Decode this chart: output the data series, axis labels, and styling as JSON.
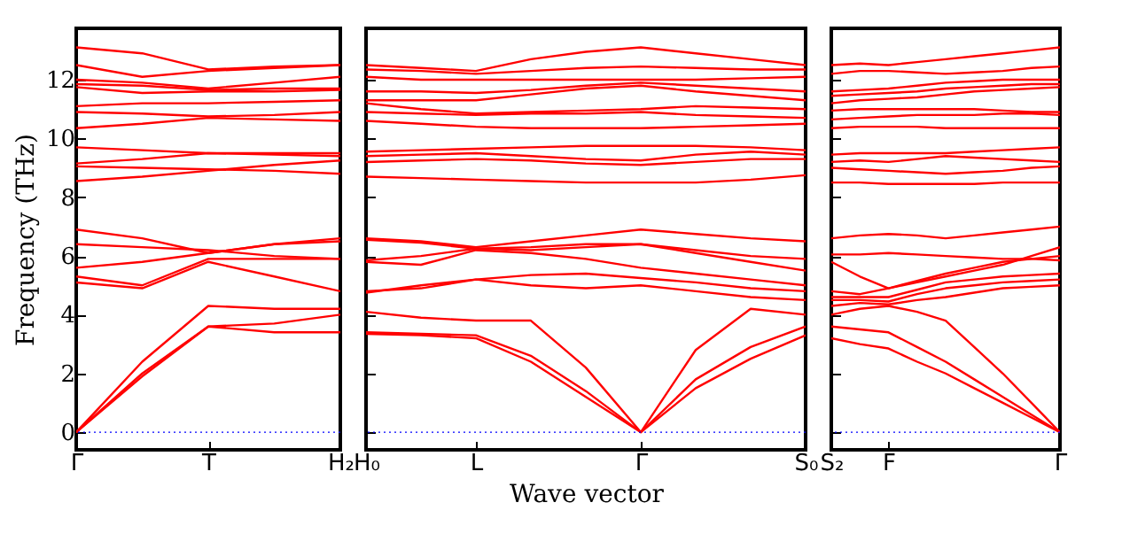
{
  "chart_data": [
    {
      "type": "line",
      "ylabel": "Frequency (THz)",
      "ylim": [
        -0.6,
        13.75
      ],
      "yticks": [
        0,
        2,
        4,
        6,
        8,
        10,
        12
      ],
      "categories": [
        "Γ",
        null,
        "T",
        null,
        "H₂"
      ],
      "ref_lines": [
        {
          "axis": "y",
          "value": 0,
          "color": "#0000ff",
          "line_style": "dotted"
        }
      ],
      "series": [
        {
          "color": "#ff0000",
          "values": [
            0,
            1.9,
            3.6,
            3.4,
            3.4
          ]
        },
        {
          "color": "#ff0000",
          "values": [
            0,
            2.0,
            3.6,
            3.7,
            4.0
          ]
        },
        {
          "color": "#ff0000",
          "values": [
            0,
            2.4,
            4.3,
            4.2,
            4.2
          ]
        },
        {
          "color": "#ff0000",
          "values": [
            5.1,
            4.9,
            5.8,
            5.3,
            4.8
          ]
        },
        {
          "color": "#ff0000",
          "values": [
            5.3,
            5.0,
            5.9,
            5.9,
            5.9
          ]
        },
        {
          "color": "#ff0000",
          "values": [
            5.6,
            5.8,
            6.1,
            6.4,
            6.5
          ]
        },
        {
          "color": "#ff0000",
          "values": [
            6.4,
            6.3,
            6.2,
            6.0,
            5.9
          ]
        },
        {
          "color": "#ff0000",
          "values": [
            6.9,
            6.6,
            6.1,
            6.4,
            6.6
          ]
        },
        {
          "color": "#ff0000",
          "values": [
            8.55,
            8.7,
            8.9,
            9.1,
            9.25
          ]
        },
        {
          "color": "#ff0000",
          "values": [
            9.05,
            9.0,
            8.95,
            8.9,
            8.8
          ]
        },
        {
          "color": "#ff0000",
          "values": [
            9.15,
            9.3,
            9.5,
            9.45,
            9.4
          ]
        },
        {
          "color": "#ff0000",
          "values": [
            9.7,
            9.6,
            9.5,
            9.5,
            9.5
          ]
        },
        {
          "color": "#ff0000",
          "values": [
            10.35,
            10.5,
            10.7,
            10.65,
            10.6
          ]
        },
        {
          "color": "#ff0000",
          "values": [
            10.9,
            10.85,
            10.75,
            10.8,
            10.9
          ]
        },
        {
          "color": "#ff0000",
          "values": [
            11.1,
            11.2,
            11.2,
            11.25,
            11.3
          ]
        },
        {
          "color": "#ff0000",
          "values": [
            11.75,
            11.55,
            11.6,
            11.6,
            11.65
          ]
        },
        {
          "color": "#ff0000",
          "values": [
            11.85,
            11.8,
            11.65,
            11.7,
            11.7
          ]
        },
        {
          "color": "#ff0000",
          "values": [
            12.0,
            11.9,
            11.7,
            11.9,
            12.1
          ]
        },
        {
          "color": "#ff0000",
          "values": [
            12.5,
            12.1,
            12.3,
            12.4,
            12.5
          ]
        },
        {
          "color": "#ff0000",
          "values": [
            13.1,
            12.9,
            12.35,
            12.45,
            12.5
          ]
        }
      ]
    },
    {
      "type": "line",
      "xlabel": "Wave vector",
      "tick_labels": "x",
      "ylim": [
        -0.6,
        13.75
      ],
      "yticks": [
        0,
        2,
        4,
        6,
        8,
        10,
        12
      ],
      "categories": [
        "H₀",
        null,
        "L",
        null,
        null,
        "Γ",
        null,
        null,
        "S₀"
      ],
      "ref_lines": [
        {
          "axis": "y",
          "value": 0,
          "color": "#0000ff",
          "line_style": "dotted"
        }
      ],
      "series": [
        {
          "color": "#ff0000",
          "values": [
            3.35,
            3.3,
            3.2,
            2.4,
            1.2,
            0,
            1.5,
            2.5,
            3.3
          ]
        },
        {
          "color": "#ff0000",
          "values": [
            3.4,
            3.35,
            3.3,
            2.6,
            1.4,
            0,
            1.8,
            2.9,
            3.6
          ]
        },
        {
          "color": "#ff0000",
          "values": [
            4.1,
            3.9,
            3.8,
            3.8,
            2.2,
            0,
            2.8,
            4.2,
            4.0
          ]
        },
        {
          "color": "#ff0000",
          "values": [
            4.75,
            5.0,
            5.2,
            5.0,
            4.9,
            5.0,
            4.8,
            4.6,
            4.5
          ]
        },
        {
          "color": "#ff0000",
          "values": [
            4.8,
            4.9,
            5.2,
            5.35,
            5.4,
            5.25,
            5.1,
            4.9,
            4.8
          ]
        },
        {
          "color": "#ff0000",
          "values": [
            5.8,
            5.7,
            6.2,
            6.1,
            5.9,
            5.6,
            5.4,
            5.2,
            5.0
          ]
        },
        {
          "color": "#ff0000",
          "values": [
            5.85,
            6.0,
            6.25,
            6.3,
            6.4,
            6.4,
            6.1,
            5.8,
            5.5
          ]
        },
        {
          "color": "#ff0000",
          "values": [
            6.55,
            6.45,
            6.25,
            6.2,
            6.3,
            6.4,
            6.2,
            6.0,
            5.9
          ]
        },
        {
          "color": "#ff0000",
          "values": [
            6.6,
            6.5,
            6.3,
            6.5,
            6.7,
            6.9,
            6.75,
            6.6,
            6.5
          ]
        },
        {
          "color": "#ff0000",
          "values": [
            8.7,
            8.65,
            8.6,
            8.55,
            8.5,
            8.5,
            8.5,
            8.6,
            8.75
          ]
        },
        {
          "color": "#ff0000",
          "values": [
            9.2,
            9.25,
            9.3,
            9.25,
            9.15,
            9.1,
            9.2,
            9.3,
            9.3
          ]
        },
        {
          "color": "#ff0000",
          "values": [
            9.55,
            9.6,
            9.65,
            9.7,
            9.75,
            9.75,
            9.75,
            9.7,
            9.6
          ]
        },
        {
          "color": "#ff0000",
          "values": [
            9.4,
            9.45,
            9.5,
            9.4,
            9.3,
            9.25,
            9.45,
            9.55,
            9.45
          ]
        },
        {
          "color": "#ff0000",
          "values": [
            10.6,
            10.5,
            10.4,
            10.35,
            10.35,
            10.35,
            10.4,
            10.45,
            10.5
          ]
        },
        {
          "color": "#ff0000",
          "values": [
            10.9,
            10.85,
            10.8,
            10.85,
            10.85,
            10.9,
            10.8,
            10.75,
            10.7
          ]
        },
        {
          "color": "#ff0000",
          "values": [
            11.2,
            11.0,
            10.85,
            10.9,
            10.95,
            11.0,
            11.1,
            11.05,
            11.0
          ]
        },
        {
          "color": "#ff0000",
          "values": [
            11.3,
            11.3,
            11.3,
            11.5,
            11.7,
            11.8,
            11.6,
            11.45,
            11.3
          ]
        },
        {
          "color": "#ff0000",
          "values": [
            11.6,
            11.6,
            11.55,
            11.65,
            11.8,
            11.9,
            11.8,
            11.7,
            11.6
          ]
        },
        {
          "color": "#ff0000",
          "values": [
            12.1,
            12.0,
            12.0,
            12.0,
            12.0,
            12.0,
            12.0,
            12.05,
            12.1
          ]
        },
        {
          "color": "#ff0000",
          "values": [
            12.35,
            12.3,
            12.2,
            12.3,
            12.4,
            12.45,
            12.4,
            12.35,
            12.35
          ]
        },
        {
          "color": "#ff0000",
          "values": [
            12.5,
            12.4,
            12.3,
            12.7,
            12.95,
            13.1,
            12.9,
            12.7,
            12.5
          ]
        }
      ]
    },
    {
      "type": "line",
      "tick_labels": "x",
      "ylim": [
        -0.6,
        13.75
      ],
      "yticks": [
        0,
        2,
        4,
        6,
        8,
        10,
        12
      ],
      "categories": [
        "S₂",
        null,
        "F",
        null,
        null,
        null,
        null,
        null,
        "Γ"
      ],
      "ref_lines": [
        {
          "axis": "y",
          "value": 0,
          "color": "#0000ff",
          "line_style": "dotted"
        }
      ],
      "series": [
        {
          "color": "#ff0000",
          "values": [
            3.2,
            3.0,
            2.85,
            2.4,
            2.0,
            1.5,
            1.0,
            0.5,
            0
          ]
        },
        {
          "color": "#ff0000",
          "values": [
            3.6,
            3.5,
            3.4,
            2.9,
            2.4,
            1.8,
            1.2,
            0.6,
            0
          ]
        },
        {
          "color": "#ff0000",
          "values": [
            4.0,
            4.2,
            4.3,
            4.1,
            3.8,
            2.9,
            2.0,
            1.0,
            0
          ]
        },
        {
          "color": "#ff0000",
          "values": [
            4.3,
            4.4,
            4.35,
            4.5,
            4.6,
            4.75,
            4.9,
            4.95,
            5.0
          ]
        },
        {
          "color": "#ff0000",
          "values": [
            4.5,
            4.5,
            4.45,
            4.7,
            4.9,
            5.0,
            5.1,
            5.15,
            5.2
          ]
        },
        {
          "color": "#ff0000",
          "values": [
            4.6,
            4.6,
            4.6,
            4.85,
            5.1,
            5.2,
            5.3,
            5.35,
            5.4
          ]
        },
        {
          "color": "#ff0000",
          "values": [
            4.8,
            4.7,
            4.9,
            5.15,
            5.4,
            5.6,
            5.8,
            5.9,
            6.0
          ]
        },
        {
          "color": "#ff0000",
          "values": [
            5.8,
            5.3,
            4.9,
            5.1,
            5.3,
            5.5,
            5.7,
            6.0,
            6.3
          ]
        },
        {
          "color": "#ff0000",
          "values": [
            6.05,
            6.05,
            6.1,
            6.05,
            6.0,
            5.95,
            5.9,
            5.9,
            5.85
          ]
        },
        {
          "color": "#ff0000",
          "values": [
            6.6,
            6.7,
            6.75,
            6.7,
            6.6,
            6.7,
            6.8,
            6.9,
            7.0
          ]
        },
        {
          "color": "#ff0000",
          "values": [
            8.5,
            8.5,
            8.45,
            8.45,
            8.45,
            8.45,
            8.5,
            8.5,
            8.5
          ]
        },
        {
          "color": "#ff0000",
          "values": [
            9.0,
            8.95,
            8.9,
            8.85,
            8.8,
            8.85,
            8.9,
            9.0,
            9.05
          ]
        },
        {
          "color": "#ff0000",
          "values": [
            9.2,
            9.25,
            9.2,
            9.3,
            9.4,
            9.35,
            9.3,
            9.25,
            9.2
          ]
        },
        {
          "color": "#ff0000",
          "values": [
            9.45,
            9.5,
            9.5,
            9.5,
            9.5,
            9.55,
            9.6,
            9.65,
            9.7
          ]
        },
        {
          "color": "#ff0000",
          "values": [
            10.35,
            10.4,
            10.4,
            10.4,
            10.35,
            10.35,
            10.35,
            10.35,
            10.35
          ]
        },
        {
          "color": "#ff0000",
          "values": [
            10.65,
            10.7,
            10.75,
            10.8,
            10.8,
            10.8,
            10.85,
            10.85,
            10.8
          ]
        },
        {
          "color": "#ff0000",
          "values": [
            10.95,
            11.0,
            11.0,
            11.0,
            11.0,
            11.0,
            10.95,
            10.9,
            10.9
          ]
        },
        {
          "color": "#ff0000",
          "values": [
            11.2,
            11.3,
            11.35,
            11.4,
            11.5,
            11.6,
            11.65,
            11.7,
            11.75
          ]
        },
        {
          "color": "#ff0000",
          "values": [
            11.45,
            11.5,
            11.55,
            11.6,
            11.7,
            11.75,
            11.8,
            11.85,
            11.85
          ]
        },
        {
          "color": "#ff0000",
          "values": [
            11.6,
            11.65,
            11.7,
            11.8,
            11.9,
            11.95,
            12.0,
            12.0,
            12.0
          ]
        },
        {
          "color": "#ff0000",
          "values": [
            12.2,
            12.3,
            12.3,
            12.25,
            12.2,
            12.25,
            12.3,
            12.4,
            12.45
          ]
        },
        {
          "color": "#ff0000",
          "values": [
            12.5,
            12.55,
            12.5,
            12.6,
            12.7,
            12.8,
            12.9,
            13.0,
            13.1
          ]
        }
      ]
    }
  ]
}
